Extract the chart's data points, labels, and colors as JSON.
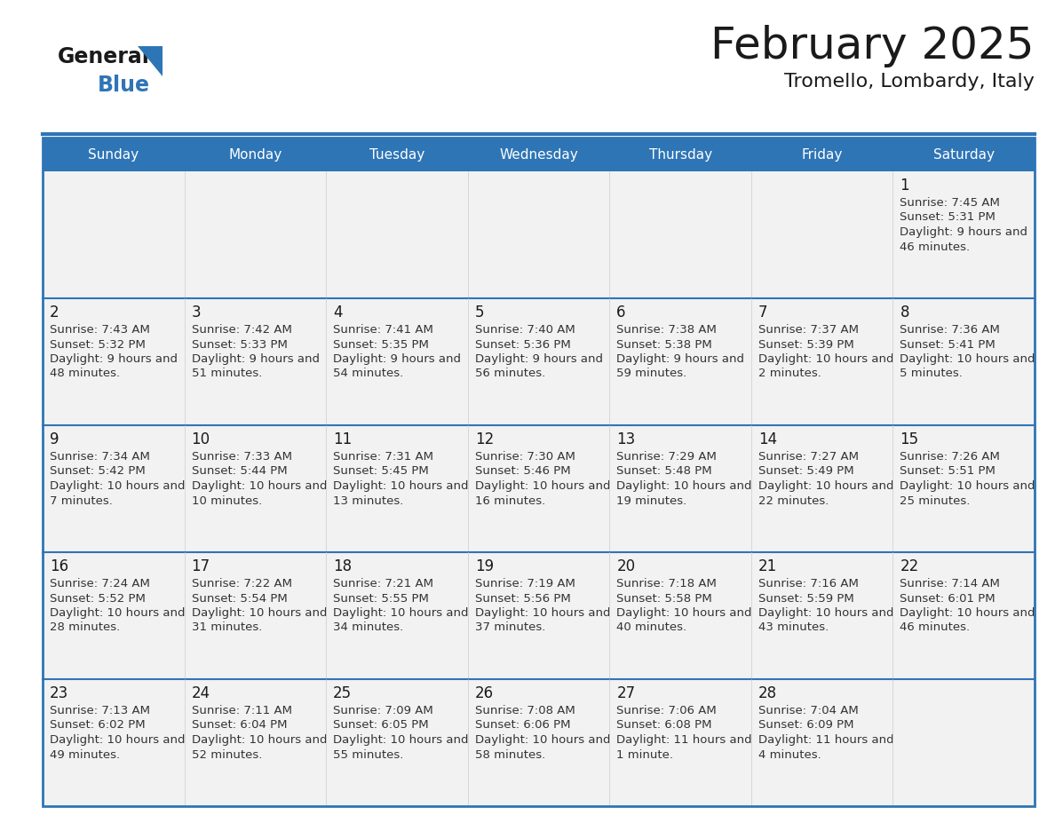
{
  "title": "February 2025",
  "subtitle": "Tromello, Lombardy, Italy",
  "header_bg": "#2E75B6",
  "header_text_color": "#FFFFFF",
  "cell_bg": "#F2F2F2",
  "cell_bg_empty": "#FFFFFF",
  "day_names": [
    "Sunday",
    "Monday",
    "Tuesday",
    "Wednesday",
    "Thursday",
    "Friday",
    "Saturday"
  ],
  "title_color": "#1a1a1a",
  "subtitle_color": "#1a1a1a",
  "day_num_color": "#1a1a1a",
  "cell_text_color": "#333333",
  "row_line_color": "#2E75B6",
  "col_line_color": "#CCCCCC",
  "weeks": [
    [
      null,
      null,
      null,
      null,
      null,
      null,
      1
    ],
    [
      2,
      3,
      4,
      5,
      6,
      7,
      8
    ],
    [
      9,
      10,
      11,
      12,
      13,
      14,
      15
    ],
    [
      16,
      17,
      18,
      19,
      20,
      21,
      22
    ],
    [
      23,
      24,
      25,
      26,
      27,
      28,
      null
    ]
  ],
  "day_data": {
    "1": {
      "sunrise": "7:45 AM",
      "sunset": "5:31 PM",
      "daylight": "9 hours and 46 minutes."
    },
    "2": {
      "sunrise": "7:43 AM",
      "sunset": "5:32 PM",
      "daylight": "9 hours and 48 minutes."
    },
    "3": {
      "sunrise": "7:42 AM",
      "sunset": "5:33 PM",
      "daylight": "9 hours and 51 minutes."
    },
    "4": {
      "sunrise": "7:41 AM",
      "sunset": "5:35 PM",
      "daylight": "9 hours and 54 minutes."
    },
    "5": {
      "sunrise": "7:40 AM",
      "sunset": "5:36 PM",
      "daylight": "9 hours and 56 minutes."
    },
    "6": {
      "sunrise": "7:38 AM",
      "sunset": "5:38 PM",
      "daylight": "9 hours and 59 minutes."
    },
    "7": {
      "sunrise": "7:37 AM",
      "sunset": "5:39 PM",
      "daylight": "10 hours and 2 minutes."
    },
    "8": {
      "sunrise": "7:36 AM",
      "sunset": "5:41 PM",
      "daylight": "10 hours and 5 minutes."
    },
    "9": {
      "sunrise": "7:34 AM",
      "sunset": "5:42 PM",
      "daylight": "10 hours and 7 minutes."
    },
    "10": {
      "sunrise": "7:33 AM",
      "sunset": "5:44 PM",
      "daylight": "10 hours and 10 minutes."
    },
    "11": {
      "sunrise": "7:31 AM",
      "sunset": "5:45 PM",
      "daylight": "10 hours and 13 minutes."
    },
    "12": {
      "sunrise": "7:30 AM",
      "sunset": "5:46 PM",
      "daylight": "10 hours and 16 minutes."
    },
    "13": {
      "sunrise": "7:29 AM",
      "sunset": "5:48 PM",
      "daylight": "10 hours and 19 minutes."
    },
    "14": {
      "sunrise": "7:27 AM",
      "sunset": "5:49 PM",
      "daylight": "10 hours and 22 minutes."
    },
    "15": {
      "sunrise": "7:26 AM",
      "sunset": "5:51 PM",
      "daylight": "10 hours and 25 minutes."
    },
    "16": {
      "sunrise": "7:24 AM",
      "sunset": "5:52 PM",
      "daylight": "10 hours and 28 minutes."
    },
    "17": {
      "sunrise": "7:22 AM",
      "sunset": "5:54 PM",
      "daylight": "10 hours and 31 minutes."
    },
    "18": {
      "sunrise": "7:21 AM",
      "sunset": "5:55 PM",
      "daylight": "10 hours and 34 minutes."
    },
    "19": {
      "sunrise": "7:19 AM",
      "sunset": "5:56 PM",
      "daylight": "10 hours and 37 minutes."
    },
    "20": {
      "sunrise": "7:18 AM",
      "sunset": "5:58 PM",
      "daylight": "10 hours and 40 minutes."
    },
    "21": {
      "sunrise": "7:16 AM",
      "sunset": "5:59 PM",
      "daylight": "10 hours and 43 minutes."
    },
    "22": {
      "sunrise": "7:14 AM",
      "sunset": "6:01 PM",
      "daylight": "10 hours and 46 minutes."
    },
    "23": {
      "sunrise": "7:13 AM",
      "sunset": "6:02 PM",
      "daylight": "10 hours and 49 minutes."
    },
    "24": {
      "sunrise": "7:11 AM",
      "sunset": "6:04 PM",
      "daylight": "10 hours and 52 minutes."
    },
    "25": {
      "sunrise": "7:09 AM",
      "sunset": "6:05 PM",
      "daylight": "10 hours and 55 minutes."
    },
    "26": {
      "sunrise": "7:08 AM",
      "sunset": "6:06 PM",
      "daylight": "10 hours and 58 minutes."
    },
    "27": {
      "sunrise": "7:06 AM",
      "sunset": "6:08 PM",
      "daylight": "11 hours and 1 minute."
    },
    "28": {
      "sunrise": "7:04 AM",
      "sunset": "6:09 PM",
      "daylight": "11 hours and 4 minutes."
    }
  },
  "logo_general_color": "#1a1a1a",
  "logo_blue_color": "#2E75B6",
  "logo_triangle_color": "#2E75B6"
}
